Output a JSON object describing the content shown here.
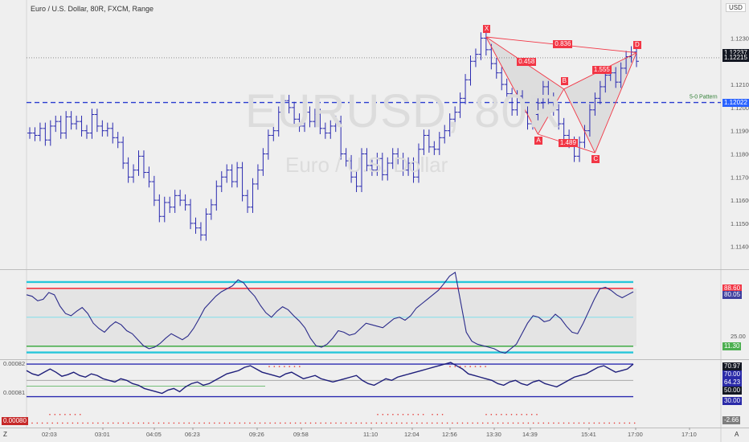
{
  "header": {
    "title": "Euro / U.S. Dollar, 80R, FXCM, Range",
    "currency": "USD",
    "watermark_symbol": "EURUSD, 80R",
    "watermark_name": "Euro / U.S. Dollar"
  },
  "chart_data": {
    "type": "ohlc",
    "price_axis": {
      "ticks": [
        "1.12300",
        "1.12100",
        "1.12000",
        "1.11900",
        "1.11800",
        "1.11700",
        "1.11600",
        "1.11500",
        "1.11400"
      ],
      "range": [
        1.1134,
        1.1243
      ]
    },
    "time_axis": {
      "ticks": [
        "02:03",
        "03:01",
        "04:05",
        "06:23",
        "09:26",
        "09:58",
        "11:10",
        "12:04",
        "12:56",
        "13:30",
        "14:39",
        "15:41",
        "17:00",
        "17:10"
      ]
    },
    "price_labels": [
      {
        "value": "1.12237",
        "color": "#131722"
      },
      {
        "value": "1.12215",
        "color": "#131722"
      },
      {
        "value": "1.12022",
        "color": "#2962ff"
      }
    ],
    "horizontal_line": {
      "label": "5-0 Pattern",
      "value": 1.12022
    },
    "last_price_line": 1.12215,
    "closes": [
      1.1189,
      1.1188,
      1.1191,
      1.1186,
      1.1192,
      1.1194,
      1.1189,
      1.1196,
      1.1193,
      1.1194,
      1.119,
      1.1189,
      1.1197,
      1.1192,
      1.119,
      1.1191,
      1.1187,
      1.1185,
      1.1176,
      1.117,
      1.1173,
      1.1179,
      1.1172,
      1.1168,
      1.116,
      1.1153,
      1.1159,
      1.1157,
      1.1162,
      1.116,
      1.1158,
      1.115,
      1.1148,
      1.1145,
      1.1154,
      1.1158,
      1.1166,
      1.117,
      1.1173,
      1.1168,
      1.1174,
      1.1162,
      1.1157,
      1.1167,
      1.1173,
      1.118,
      1.1188,
      1.119,
      1.1198,
      1.1203,
      1.12,
      1.1195,
      1.1192,
      1.1198,
      1.1194,
      1.1197,
      1.1191,
      1.1189,
      1.1192,
      1.1194,
      1.118,
      1.1177,
      1.117,
      1.1166,
      1.118,
      1.1175,
      1.1173,
      1.1178,
      1.1171,
      1.1176,
      1.118,
      1.1178,
      1.1173,
      1.1176,
      1.117,
      1.1182,
      1.1188,
      1.1183,
      1.1182,
      1.1187,
      1.119,
      1.1195,
      1.1198,
      1.1204,
      1.1212,
      1.122,
      1.1223,
      1.123,
      1.1225,
      1.1219,
      1.1215,
      1.121,
      1.1206,
      1.1199,
      1.1205,
      1.1198,
      1.1193,
      1.1197,
      1.1202,
      1.1209,
      1.1204,
      1.1199,
      1.1193,
      1.1188,
      1.1185,
      1.1179,
      1.1185,
      1.119,
      1.1199,
      1.1204,
      1.1209,
      1.1214,
      1.1215,
      1.1211,
      1.1217,
      1.1222,
      1.1224,
      1.122
    ],
    "pattern": {
      "points": [
        {
          "label": "X",
          "i": 88,
          "price": 1.12305
        },
        {
          "label": "A",
          "i": 98,
          "price": 1.11885
        },
        {
          "label": "B",
          "i": 103,
          "price": 1.1208
        },
        {
          "label": "C",
          "i": 109,
          "price": 1.11805
        },
        {
          "label": "D",
          "i": 117,
          "price": 1.12237
        }
      ],
      "ratios": [
        {
          "value": "0.458"
        },
        {
          "value": "1.489"
        },
        {
          "value": "1.555"
        },
        {
          "value": "0.836"
        }
      ]
    },
    "stoch": {
      "levels": {
        "upper_blue": 97,
        "upper_red": 88.6,
        "middle": 50,
        "lower_green": 11.3,
        "lower_blue": 3
      },
      "labels": [
        {
          "value": "88.60",
          "color": "#f23645"
        },
        {
          "value": "80.05",
          "color": "#3f3f9f"
        },
        {
          "value": "25.00",
          "color": "#444444"
        },
        {
          "value": "11.30",
          "color": "#4caf50"
        }
      ],
      "values": [
        80,
        78,
        72,
        74,
        83,
        80,
        65,
        55,
        52,
        58,
        63,
        55,
        42,
        35,
        30,
        38,
        44,
        40,
        32,
        28,
        20,
        12,
        8,
        10,
        15,
        22,
        28,
        24,
        20,
        25,
        35,
        48,
        62,
        70,
        78,
        84,
        88,
        92,
        100,
        96,
        86,
        78,
        66,
        56,
        50,
        58,
        64,
        60,
        52,
        45,
        36,
        22,
        12,
        10,
        14,
        22,
        32,
        30,
        26,
        28,
        35,
        42,
        40,
        38,
        36,
        42,
        48,
        50,
        46,
        52,
        62,
        68,
        74,
        80,
        86,
        95,
        105,
        110,
        70,
        30,
        18,
        14,
        12,
        10,
        8,
        4,
        2,
        8,
        14,
        28,
        42,
        52,
        50,
        44,
        46,
        54,
        48,
        38,
        30,
        28,
        42,
        58,
        74,
        88,
        90,
        86,
        80,
        76,
        80,
        84
      ]
    },
    "rsi": {
      "top_labels": [
        "0.00082",
        "0.00081"
      ],
      "bottom_label": "0.00080",
      "axis_labels": [
        {
          "value": "70.97",
          "color": "#131722"
        },
        {
          "value": "70.00",
          "color": "#2a2aa8"
        },
        {
          "value": "64.23",
          "color": "#2a2aa8"
        },
        {
          "value": "50.00",
          "color": "#131722"
        },
        {
          "value": "30.00",
          "color": "#2a2aa8"
        },
        {
          "value": "-2.66",
          "color": "#7d7d7d"
        }
      ],
      "values": [
        62,
        58,
        56,
        60,
        64,
        60,
        55,
        57,
        60,
        56,
        54,
        58,
        56,
        52,
        50,
        48,
        52,
        50,
        46,
        44,
        40,
        38,
        36,
        34,
        38,
        40,
        36,
        42,
        46,
        48,
        44,
        46,
        50,
        54,
        58,
        60,
        62,
        66,
        68,
        64,
        60,
        58,
        56,
        54,
        58,
        60,
        56,
        52,
        54,
        56,
        52,
        50,
        48,
        50,
        52,
        54,
        56,
        50,
        46,
        44,
        48,
        52,
        50,
        54,
        56,
        58,
        60,
        62,
        64,
        66,
        68,
        70,
        72,
        68,
        64,
        58,
        56,
        54,
        52,
        50,
        46,
        44,
        48,
        50,
        46,
        44,
        48,
        50,
        46,
        44,
        42,
        46,
        50,
        54,
        56,
        58,
        62,
        66,
        68,
        64,
        60,
        62,
        64,
        70
      ]
    }
  },
  "right_axis": {
    "zoom_label": "A",
    "z_label": "Z"
  },
  "colors": {
    "bars": "#2a2ab0",
    "pattern_line": "#f23645",
    "pattern_fill": "#d5d5d5",
    "dashed": "#2a3cd0"
  }
}
